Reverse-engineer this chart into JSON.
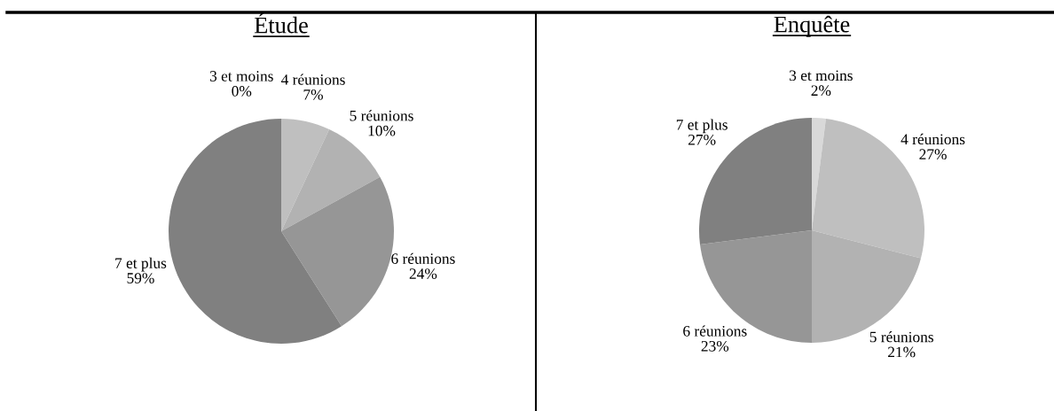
{
  "chart_data": [
    {
      "type": "pie",
      "title": "Étude",
      "categories": [
        "3 et moins",
        "4 réunions",
        "5 réunions",
        "6 réunions",
        "7 et plus"
      ],
      "values": [
        0,
        7,
        10,
        24,
        59
      ],
      "value_labels": [
        "0%",
        "7%",
        "10%",
        "24%",
        "59%"
      ],
      "colors": [
        "#d9d9d9",
        "#bfbfbf",
        "#b2b2b2",
        "#969696",
        "#808080"
      ]
    },
    {
      "type": "pie",
      "title": "Enquête",
      "categories": [
        "3 et moins",
        "4 réunions",
        "5 réunions",
        "6 réunions",
        "7 et plus"
      ],
      "values": [
        2,
        27,
        21,
        23,
        27
      ],
      "value_labels": [
        "2%",
        "27%",
        "21%",
        "23%",
        "27%"
      ],
      "colors": [
        "#d9d9d9",
        "#bfbfbf",
        "#b2b2b2",
        "#969696",
        "#808080"
      ]
    }
  ]
}
